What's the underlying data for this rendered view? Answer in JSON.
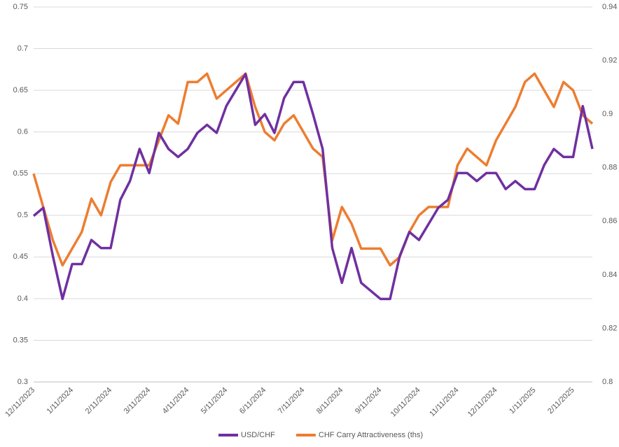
{
  "chart_data": {
    "type": "line",
    "categories": [
      "12/11/2023",
      null,
      null,
      null,
      "1/11/2024",
      null,
      null,
      null,
      "2/11/2024",
      null,
      null,
      null,
      "3/11/2024",
      null,
      null,
      null,
      "4/11/2024",
      null,
      null,
      null,
      "5/11/2024",
      null,
      null,
      null,
      "6/11/2024",
      null,
      null,
      null,
      "7/11/2024",
      null,
      null,
      null,
      "8/11/2024",
      null,
      null,
      null,
      "9/11/2024",
      null,
      null,
      null,
      "10/11/2024",
      null,
      null,
      null,
      "11/11/2024",
      null,
      null,
      null,
      "12/11/2024",
      null,
      null,
      null,
      "1/11/2025",
      null,
      null,
      null,
      "2/11/2025",
      null,
      null
    ],
    "series": [
      {
        "name": "USD/CHF",
        "color": "#7030a0",
        "axis": "y2",
        "values": [
          0.862,
          0.865,
          0.847,
          0.831,
          0.844,
          0.844,
          0.853,
          0.85,
          0.85,
          0.868,
          0.875,
          0.887,
          0.878,
          0.893,
          0.887,
          0.884,
          0.887,
          0.893,
          0.896,
          0.893,
          0.903,
          0.909,
          0.915,
          0.896,
          0.9,
          0.893,
          0.906,
          0.912,
          0.912,
          0.9,
          0.887,
          0.85,
          0.837,
          0.85,
          0.837,
          0.834,
          0.831,
          0.831,
          0.847,
          0.856,
          0.853,
          0.859,
          0.865,
          0.868,
          0.878,
          0.878,
          0.875,
          0.878,
          0.878,
          0.872,
          0.875,
          0.872,
          0.872,
          0.881,
          0.887,
          0.884,
          0.884,
          0.903,
          0.887
        ]
      },
      {
        "name": "CHF Carry Attractiveness (ths)",
        "color": "#ed7d31",
        "values": [
          0.55,
          0.51,
          0.47,
          0.44,
          0.46,
          0.48,
          0.52,
          0.5,
          0.54,
          0.56,
          0.56,
          0.56,
          0.56,
          0.59,
          0.62,
          0.61,
          0.66,
          0.66,
          0.67,
          0.64,
          0.65,
          0.66,
          0.67,
          0.63,
          0.6,
          0.59,
          0.61,
          0.62,
          0.6,
          0.58,
          0.57,
          0.47,
          0.51,
          0.49,
          0.46,
          0.46,
          0.46,
          0.44,
          0.45,
          0.48,
          0.5,
          0.51,
          0.51,
          0.51,
          0.56,
          0.58,
          0.57,
          0.56,
          0.59,
          0.61,
          0.63,
          0.66,
          0.67,
          0.65,
          0.63,
          0.66,
          0.65,
          0.62,
          0.61
        ]
      }
    ],
    "ylim": [
      0.3,
      0.75
    ],
    "yticks": [
      0.3,
      0.35,
      0.4,
      0.45,
      0.5,
      0.55,
      0.6,
      0.65,
      0.7,
      0.75
    ],
    "y2lim": [
      0.8,
      0.94
    ],
    "y2ticks": [
      0.8,
      0.82,
      0.84,
      0.86,
      0.88,
      0.9,
      0.92,
      0.94
    ],
    "grid": true,
    "legend": "bottom"
  }
}
